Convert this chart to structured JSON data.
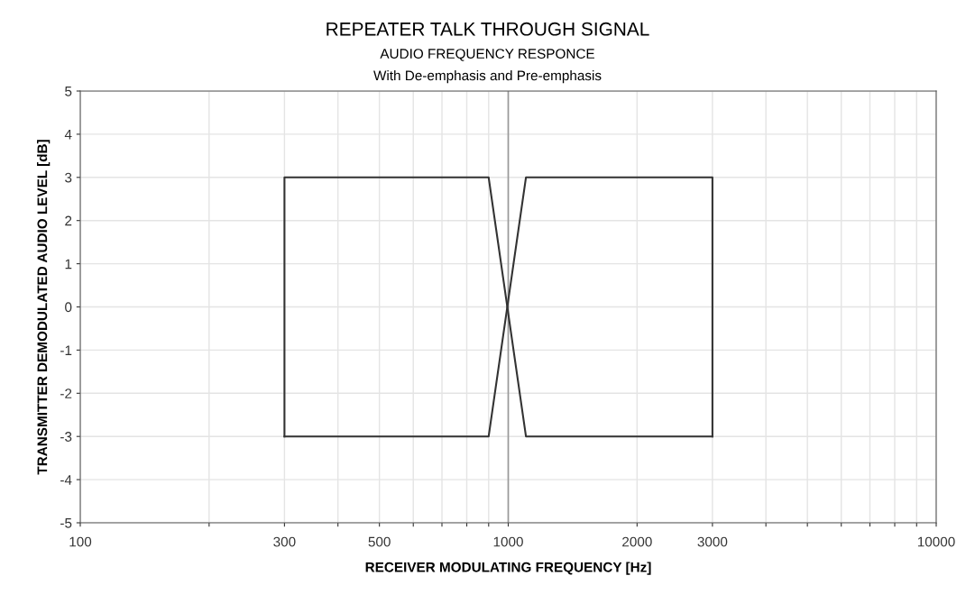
{
  "chart_data": {
    "type": "line",
    "title": "REPEATER TALK THROUGH SIGNAL",
    "subtitle": "AUDIO FREQUENCY RESPONCE\nWith De-emphasis and Pre-emphasis",
    "xlabel": "RECEIVER MODULATING FREQUENCY [Hz]",
    "ylabel": "TRANSMITTER DEMODULATED AUDIO LEVEL [dB]",
    "series": [
      {
        "color": "#333333",
        "x": [
          300,
          300,
          900,
          1100,
          3000
        ],
        "values": [
          -3,
          3,
          3,
          -3,
          -3
        ]
      },
      {
        "color": "#333333",
        "x": [
          300,
          900,
          1100,
          3000,
          3000
        ],
        "values": [
          -3,
          -3,
          3,
          3,
          -3
        ]
      }
    ],
    "log": "x",
    "xlim": [
      100,
      10000
    ],
    "ylim": [
      -5,
      5
    ],
    "xticks": [
      100,
      {
        "value": 200,
        "label": null
      },
      300,
      {
        "value": 400,
        "label": null
      },
      500,
      {
        "value": 600,
        "label": null
      },
      {
        "value": 700,
        "label": null
      },
      {
        "value": 800,
        "label": null
      },
      {
        "value": 900,
        "label": null
      },
      1000,
      2000,
      3000,
      {
        "value": 4000,
        "label": null
      },
      {
        "value": 5000,
        "label": null
      },
      {
        "value": 6000,
        "label": null
      },
      {
        "value": 7000,
        "label": null
      },
      {
        "value": 8000,
        "label": null
      },
      {
        "value": 9000,
        "label": null
      },
      10000
    ],
    "yticks": [
      -5,
      -4,
      -3,
      -2,
      -1,
      0,
      1,
      2,
      3,
      4,
      5
    ],
    "ref_lines": [
      {
        "axis": "x",
        "value": 1000,
        "color": "#999999"
      }
    ],
    "grid": true,
    "legend": false,
    "marker": "none",
    "line_style": "solid"
  }
}
